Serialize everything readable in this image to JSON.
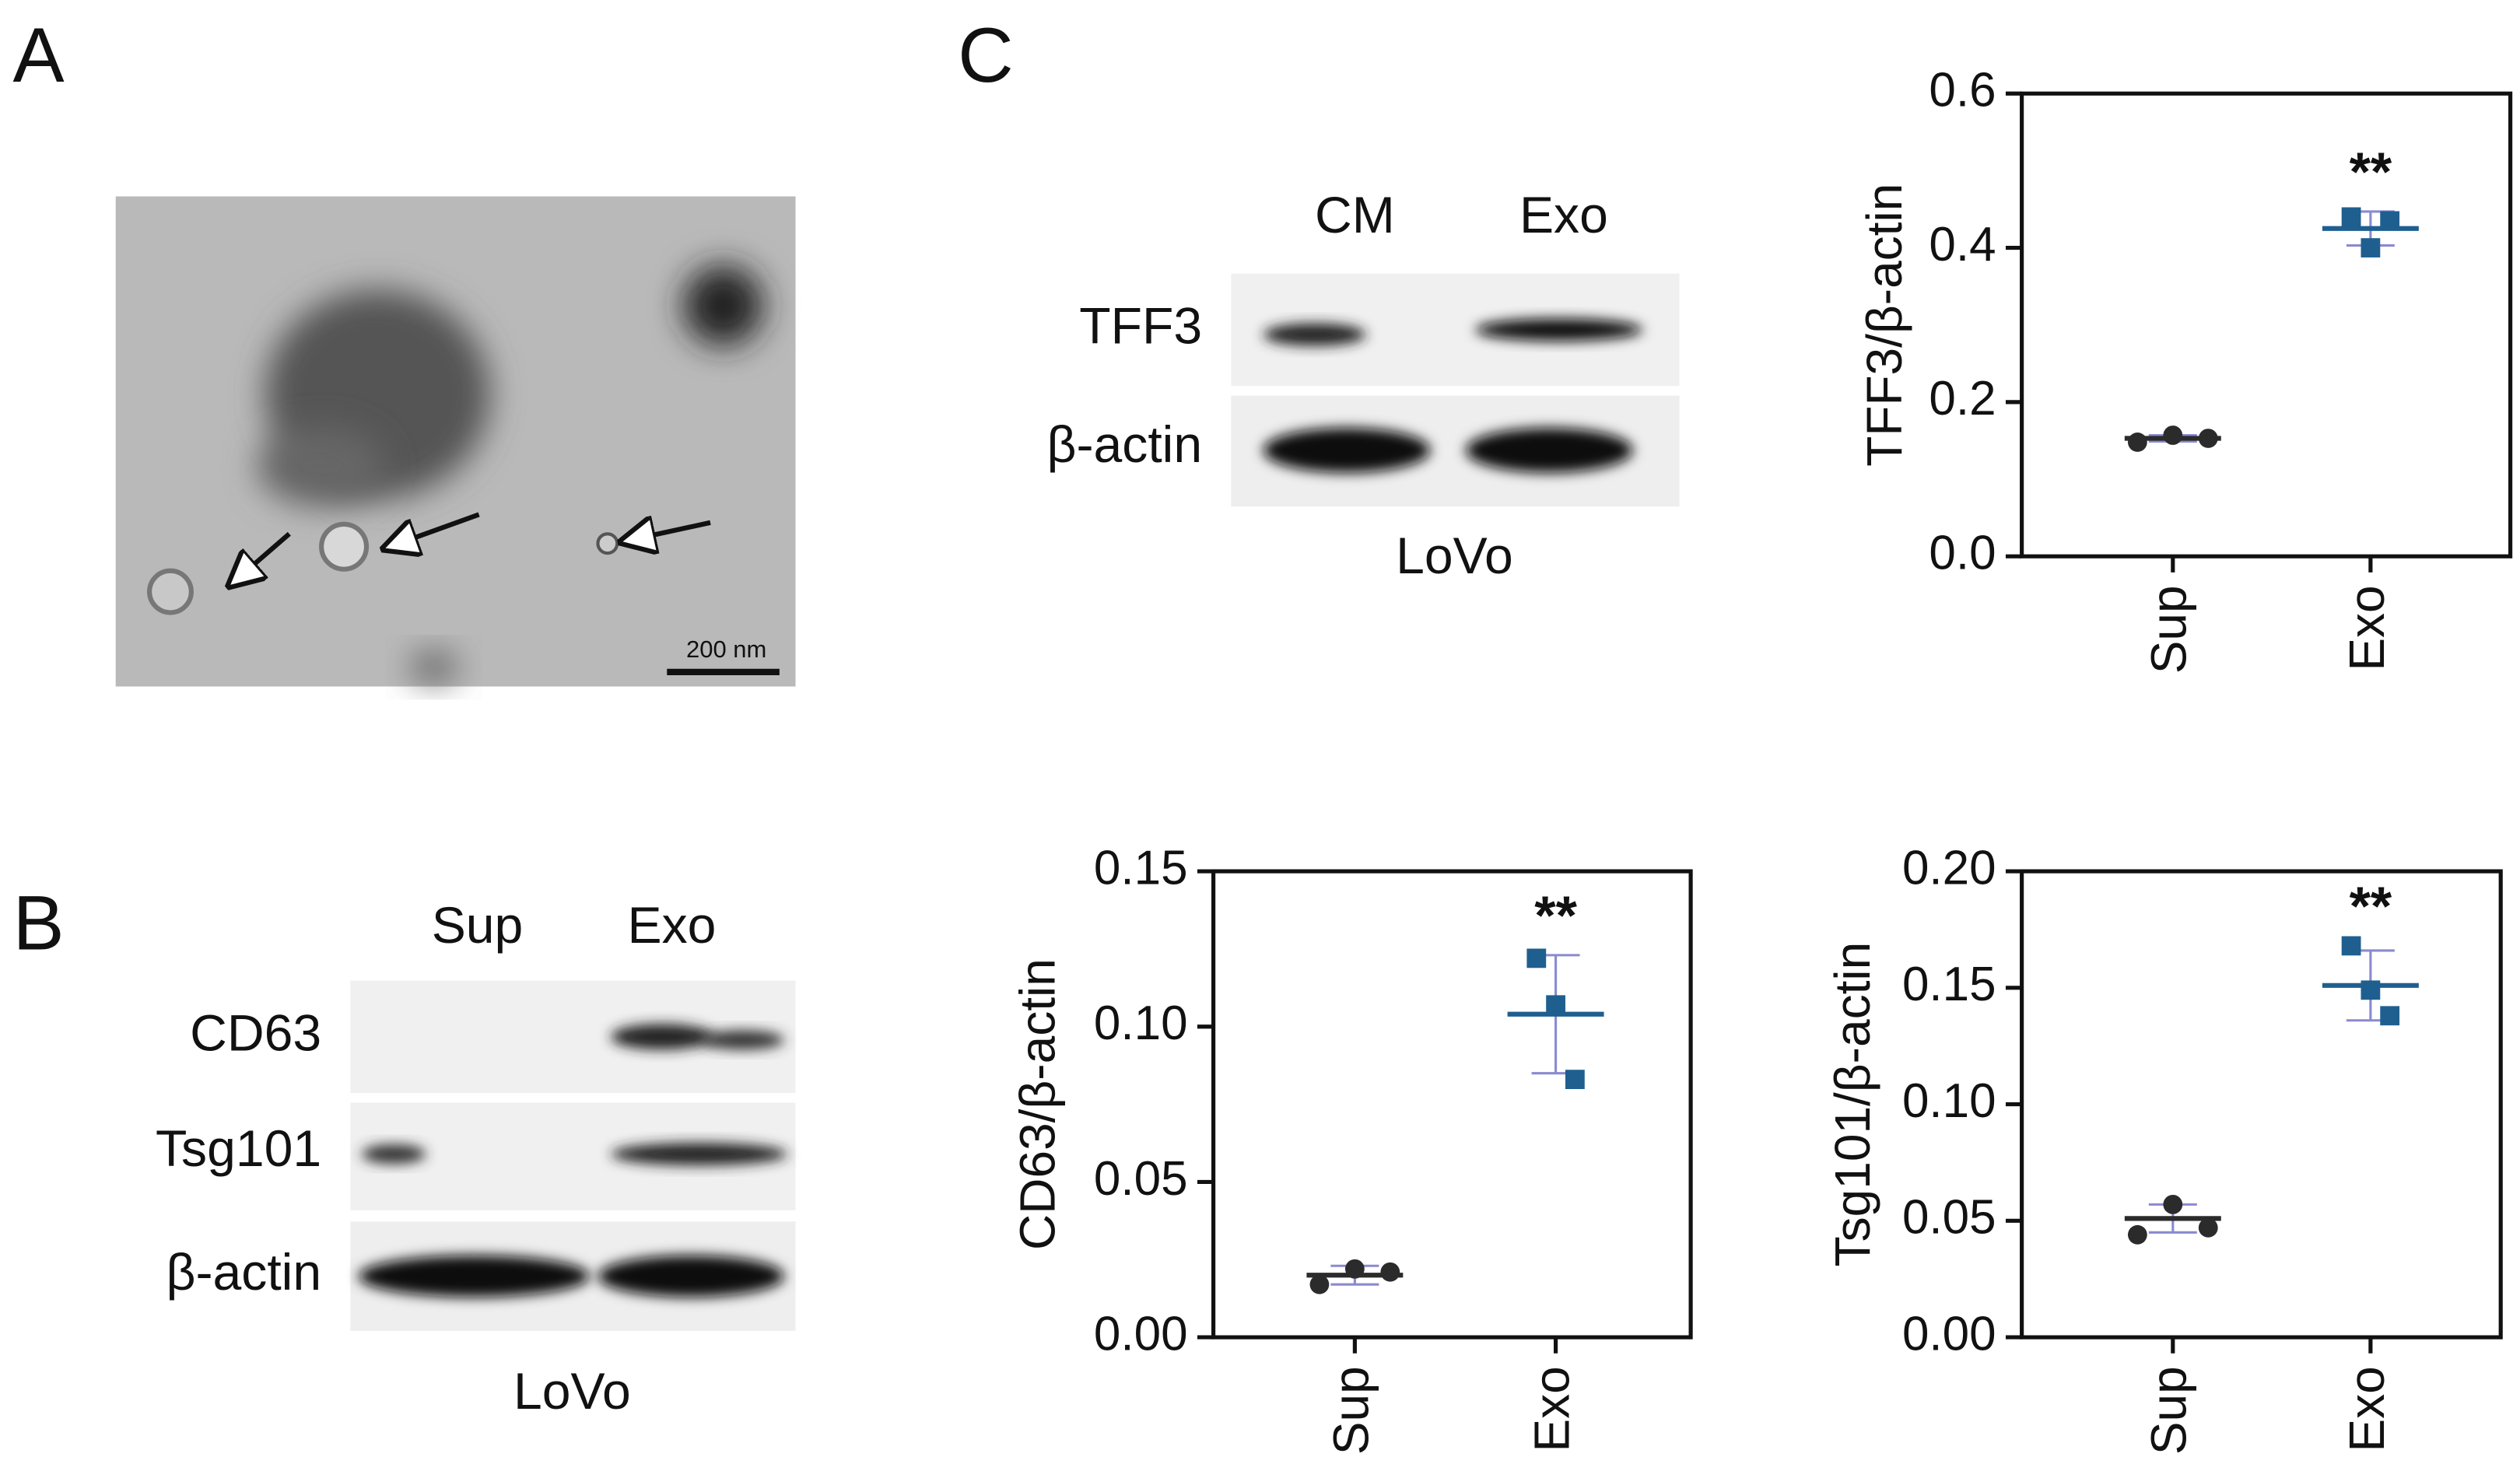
{
  "panel_labels": [
    "A",
    "B",
    "C"
  ],
  "panel_a": {
    "scale_bar": "200 nm"
  },
  "panel_b": {
    "lanes": [
      "Sup",
      "Exo"
    ],
    "rows": [
      "CD63",
      "Tsg101",
      "β-actin"
    ],
    "cell_line": "LoVo"
  },
  "panel_c_blot": {
    "lanes": [
      "CM",
      "Exo"
    ],
    "rows": [
      "TFF3",
      "β-actin"
    ],
    "cell_line": "LoVo"
  },
  "chart_data": [
    {
      "type": "dot",
      "ylabel": "TFF3/β-actin",
      "categories": [
        "Sup",
        "Exo"
      ],
      "values": [
        [
          0.148,
          0.157,
          0.153
        ],
        [
          0.44,
          0.4,
          0.435
        ]
      ],
      "means": [
        0.153,
        0.425
      ],
      "errors": [
        0.004,
        0.022
      ],
      "colors": [
        "#2b2b2b",
        "#1f5f8f"
      ],
      "markers": [
        "circle",
        "square"
      ],
      "error_color": "#8a8ad0",
      "ylim": [
        0,
        0.6
      ],
      "yticks": [
        {
          "value": 0,
          "label": "0.0"
        },
        0.2,
        0.4,
        0.6
      ],
      "annotation": "**"
    },
    {
      "type": "dot",
      "ylabel": "CD63/β-actin",
      "categories": [
        "Sup",
        "Exo"
      ],
      "values": [
        [
          0.017,
          0.022,
          0.021
        ],
        [
          0.122,
          0.107,
          0.083
        ]
      ],
      "means": [
        0.02,
        0.104
      ],
      "errors": [
        0.003,
        0.019
      ],
      "colors": [
        "#2b2b2b",
        "#1f5f8f"
      ],
      "markers": [
        "circle",
        "square"
      ],
      "error_color": "#8a8ad0",
      "ylim": [
        0,
        0.15
      ],
      "yticks": [
        {
          "value": 0,
          "label": "0.00"
        },
        0.05,
        {
          "value": 0.1,
          "label": "0.10"
        },
        0.15
      ],
      "annotation": "**"
    },
    {
      "type": "dot",
      "ylabel": "Tsg101/β-actin",
      "categories": [
        "Sup",
        "Exo"
      ],
      "values": [
        [
          0.044,
          0.057,
          0.047
        ],
        [
          0.168,
          0.149,
          0.138
        ]
      ],
      "means": [
        0.051,
        0.151
      ],
      "errors": [
        0.006,
        0.015
      ],
      "colors": [
        "#2b2b2b",
        "#1f5f8f"
      ],
      "markers": [
        "circle",
        "square"
      ],
      "error_color": "#8a8ad0",
      "ylim": [
        0,
        0.2
      ],
      "yticks": [
        {
          "value": 0,
          "label": "0.00"
        },
        0.05,
        {
          "value": 0.1,
          "label": "0.10"
        },
        0.15,
        {
          "value": 0.2,
          "label": "0.20"
        }
      ],
      "annotation": "**"
    }
  ]
}
